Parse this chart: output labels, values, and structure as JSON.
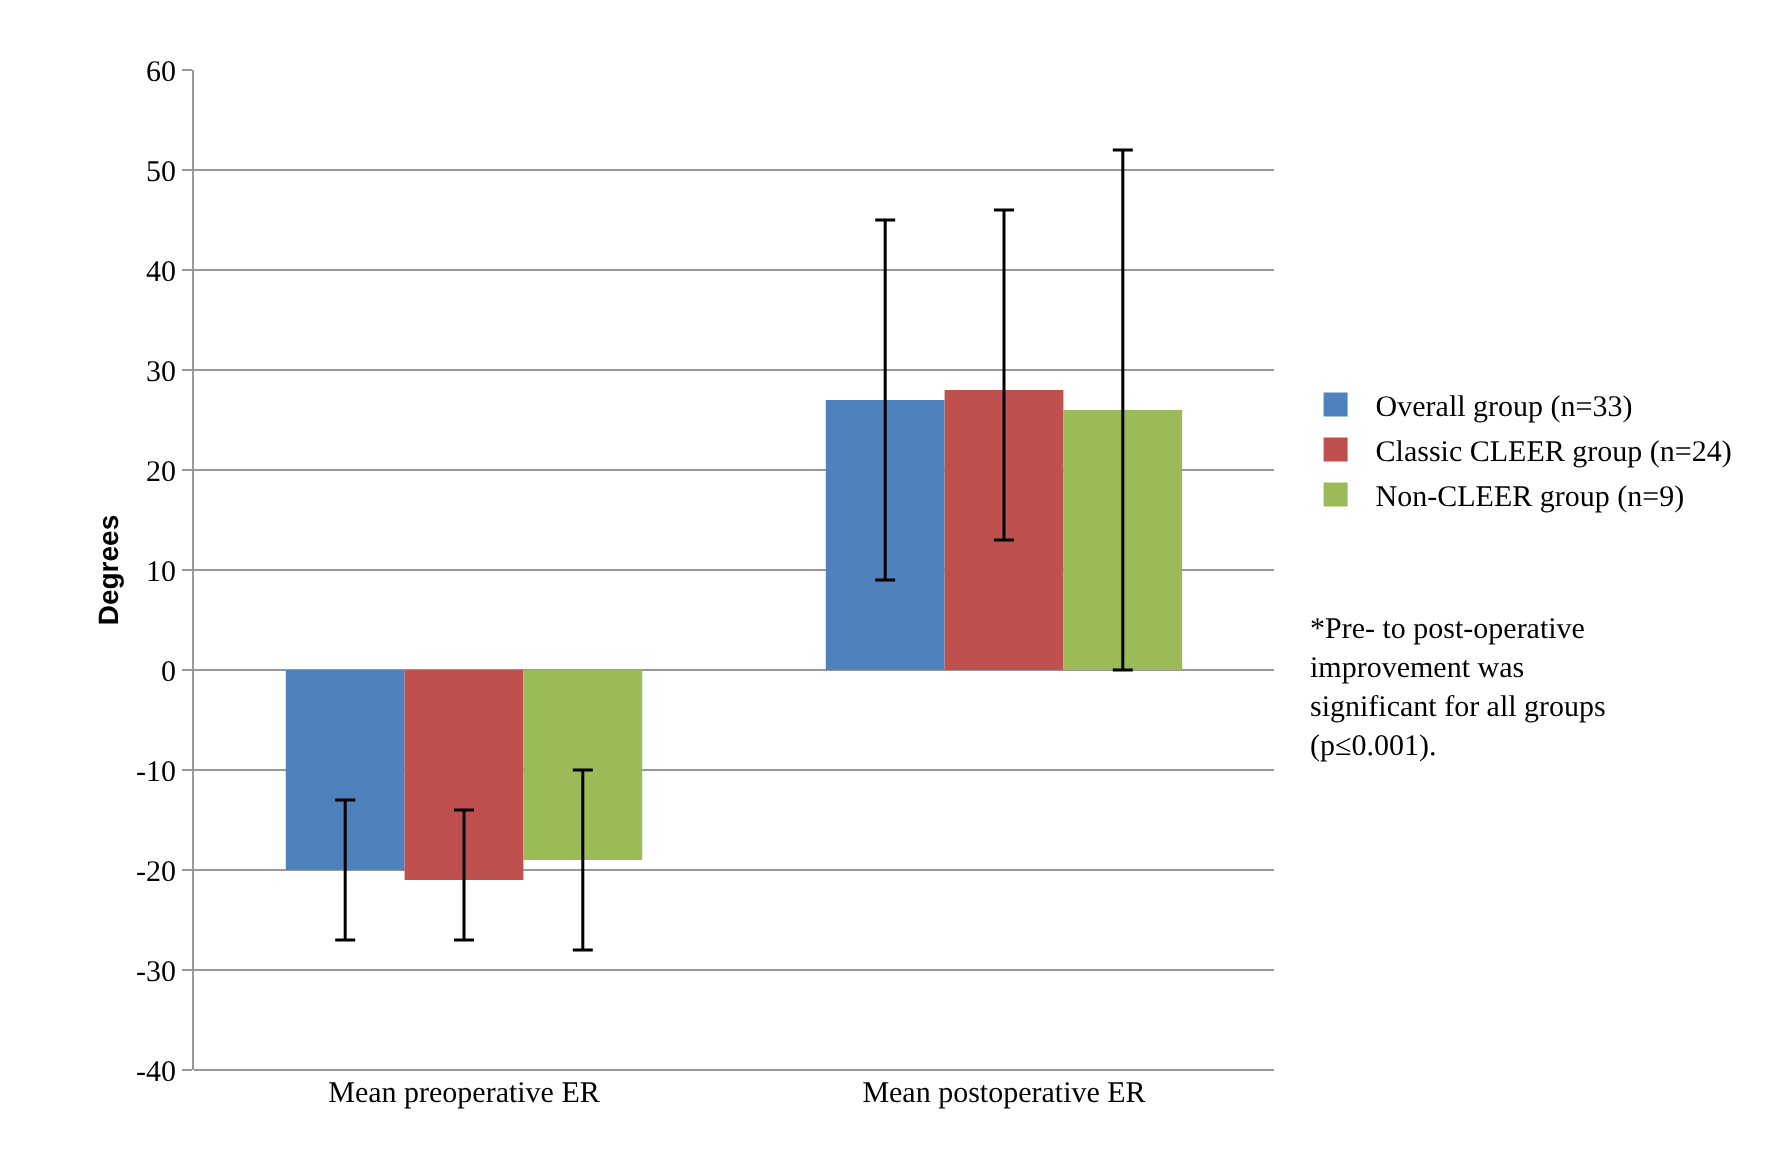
{
  "chart_data": {
    "type": "bar",
    "ylabel": "Degrees",
    "categories": [
      "Mean preoperative ER",
      "Mean postoperative ER"
    ],
    "series": [
      {
        "name": "Overall group (n=33)",
        "color": "#4f81bd",
        "values": [
          -20,
          27
        ],
        "errors": [
          [
            -27,
            -13
          ],
          [
            9,
            45
          ]
        ]
      },
      {
        "name": "Classic CLEER group (n=24)",
        "color": "#c0504d",
        "values": [
          -21,
          28
        ],
        "errors": [
          [
            -27,
            -14
          ],
          [
            13,
            46
          ]
        ]
      },
      {
        "name": "Non-CLEER group (n=9)",
        "color": "#9bbb59",
        "values": [
          -19,
          26
        ],
        "errors": [
          [
            -28,
            -10
          ],
          [
            0,
            52
          ]
        ]
      }
    ],
    "ylim": [
      -40,
      60
    ],
    "yticks": [
      -40,
      -30,
      -20,
      -10,
      0,
      10,
      20,
      30,
      40,
      50,
      60
    ],
    "grid": "y",
    "legend": "right",
    "annotations": [
      "*Pre- to post-operative improvement was significant for all groups (p≤0.001)."
    ]
  }
}
